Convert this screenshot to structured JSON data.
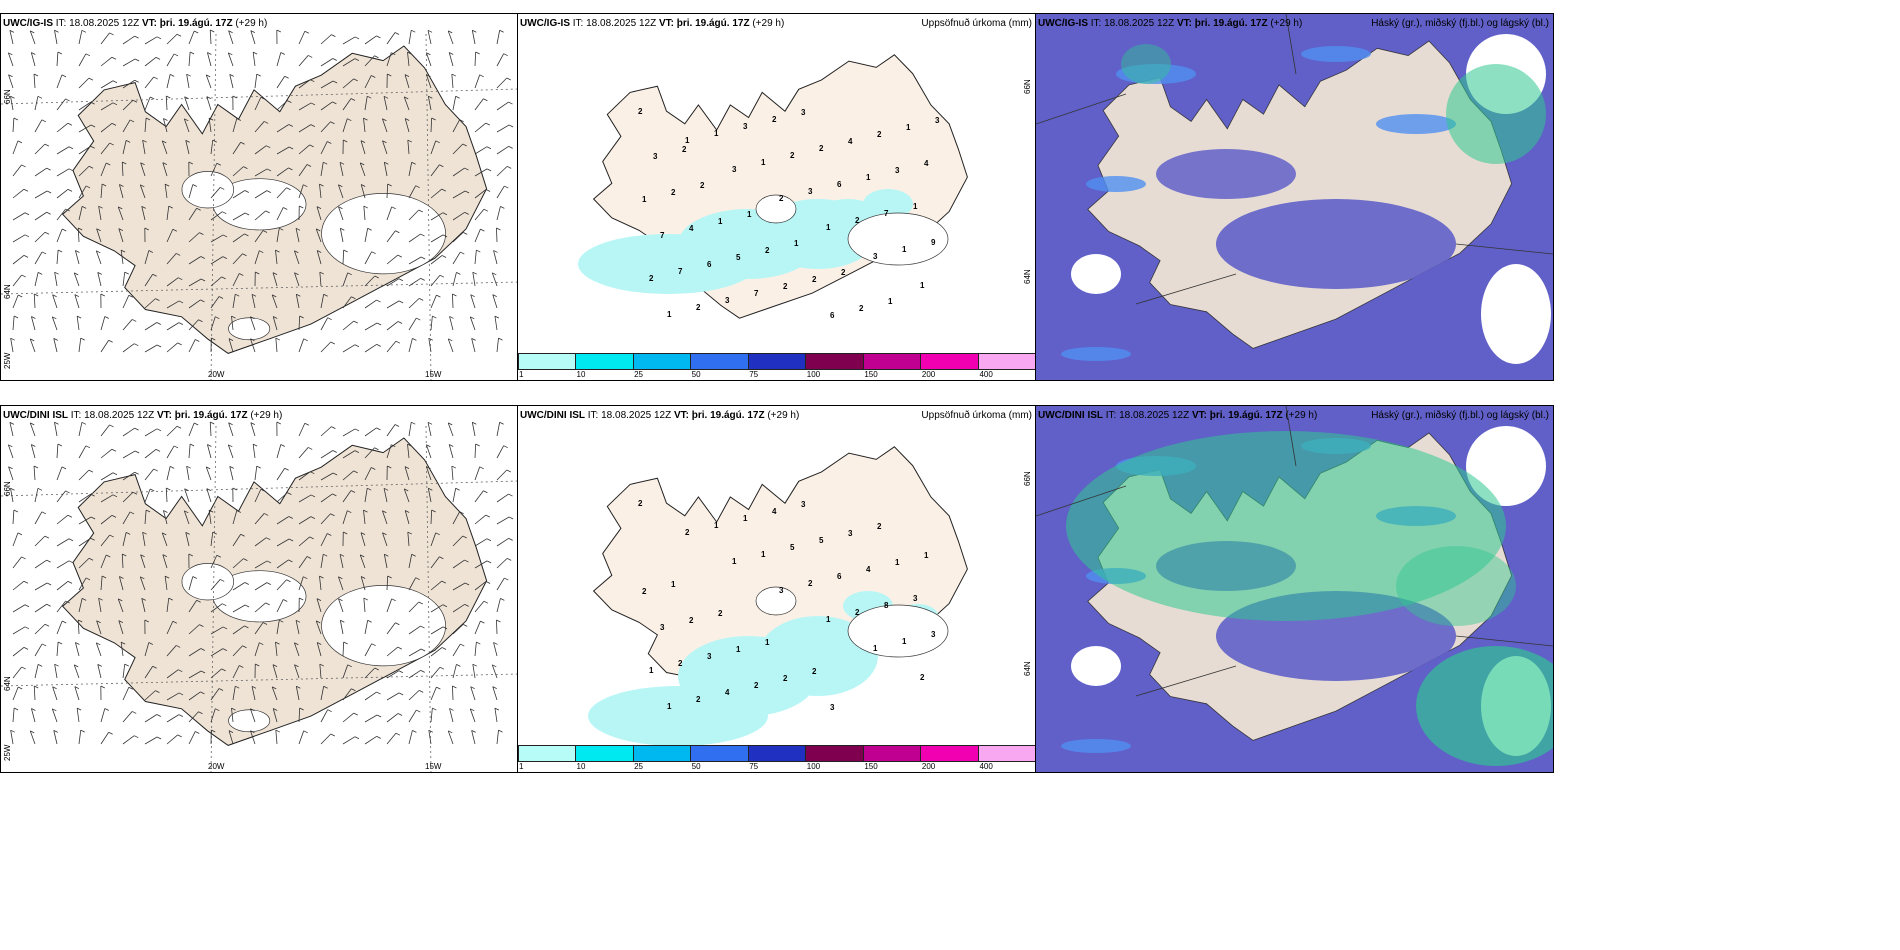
{
  "rows": [
    {
      "model": "UWC/IG-IS",
      "it_label": "IT:",
      "it_value": "18.08.2025 12Z",
      "vt_label": "VT:",
      "vt_value": "þri. 19.ágú. 17Z",
      "lead": "(+29 h)",
      "precip_title": "Uppsöfnuð úrkoma (mm)",
      "cloud_title": "Háský (gr.), miðský (fj.bl.) og lágský (bl.)",
      "lat_labels": [
        "66N",
        "64N"
      ],
      "lon_labels": [
        "25W",
        "20W",
        "15W"
      ]
    },
    {
      "model": "UWC/DINI ISL",
      "it_label": "IT:",
      "it_value": "18.08.2025 12Z",
      "vt_label": "VT:",
      "vt_value": "þri. 19.ágú. 17Z",
      "lead": "(+29 h)",
      "precip_title": "Uppsöfnuð úrkoma (mm)",
      "cloud_title": "Háský (gr.), miðský (fj.bl.) og lágský (bl.)",
      "lat_labels": [
        "66N",
        "64N"
      ],
      "lon_labels": [
        "25W",
        "20W",
        "15W"
      ]
    }
  ],
  "precip_legend": {
    "ticks": [
      "1",
      "10",
      "25",
      "50",
      "75",
      "100",
      "150",
      "200",
      "400"
    ],
    "colors": [
      "#b8fcf8",
      "#00e8f0",
      "#00b8f0",
      "#3070f0",
      "#2030c0",
      "#800050",
      "#c00090",
      "#f000b0",
      "#f8a8f0"
    ]
  },
  "colors": {
    "land": "#efe3d5",
    "land_light": "#fbf0e6",
    "precip_light": "#b8f6f6",
    "low_cloud": "#6060c8",
    "mid_cloud": "#5090f0",
    "high_cloud": "#30c890"
  },
  "precip_labels_top": [
    "2",
    "1",
    "3",
    "2",
    "1",
    "3",
    "1",
    "1",
    "1",
    "1",
    "3",
    "2",
    "1",
    "2",
    "2",
    "3",
    "2",
    "6",
    "7",
    "9",
    "7",
    "3",
    "2",
    "2",
    "1",
    "1",
    "7",
    "6",
    "7",
    "3",
    "4",
    "3",
    "1",
    "4",
    "5",
    "2",
    "6",
    "2",
    "4",
    "2",
    "1",
    "2",
    "2",
    "2",
    "1",
    "3",
    "2",
    "1",
    "1",
    "2",
    "1",
    "3",
    "2"
  ],
  "precip_labels_bottom": [
    "2",
    "2",
    "1",
    "3",
    "1",
    "1",
    "2",
    "1",
    "1",
    "1",
    "2",
    "2",
    "1",
    "1",
    "2",
    "1",
    "5",
    "6",
    "8",
    "3",
    "2",
    "4",
    "4",
    "5",
    "4",
    "3",
    "3",
    "3",
    "2",
    "3",
    "3",
    "1",
    "2",
    "2",
    "1",
    "2",
    "3",
    "2",
    "1",
    "1",
    "2",
    "1",
    "2"
  ]
}
